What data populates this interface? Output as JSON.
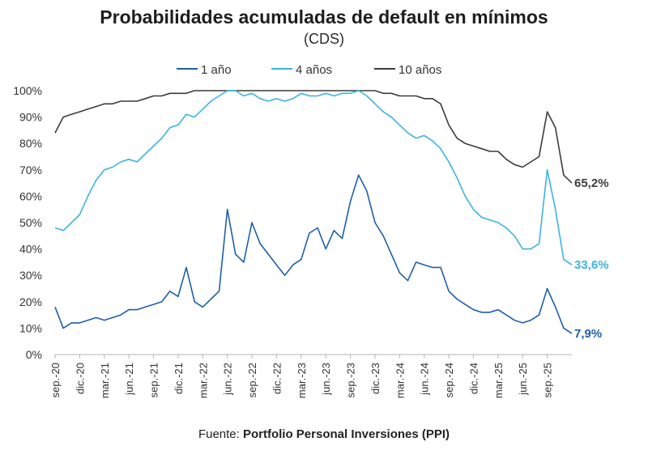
{
  "header": {
    "title": "Probabilidades acumuladas de default en mínimos",
    "subtitle": "(CDS)"
  },
  "footer": {
    "source_label": "Fuente:",
    "source_name": "Portfolio Personal Inversiones (PPI)"
  },
  "colors": {
    "series_1": "#1f5fa8",
    "series_2": "#3db3e0",
    "series_3": "#3c3c3c",
    "axis": "#b5b5b5",
    "text": "#333333"
  },
  "chart_data": {
    "type": "line",
    "title": "Probabilidades acumuladas de default en mínimos",
    "subtitle": "(CDS)",
    "legend_position": "top-center",
    "grid": false,
    "ylim": [
      0,
      100
    ],
    "y_ticks": [
      "0%",
      "10%",
      "20%",
      "30%",
      "40%",
      "50%",
      "60%",
      "70%",
      "80%",
      "90%",
      "100%"
    ],
    "x_ticks": [
      "sep.-20",
      "dic.-20",
      "mar.-21",
      "jun.-21",
      "sep.-21",
      "dic.-21",
      "mar.-22",
      "jun.-22",
      "sep.-22",
      "dic.-22",
      "mar.-23",
      "jun.-23",
      "sep.-23",
      "dic.-23",
      "mar.-24",
      "jun.-24",
      "sep.-24",
      "dic.-24",
      "mar.-25",
      "jun.-25",
      "sep.-25"
    ],
    "x": [
      "2020-09",
      "2020-10",
      "2020-11",
      "2020-12",
      "2021-01",
      "2021-02",
      "2021-03",
      "2021-04",
      "2021-05",
      "2021-06",
      "2021-07",
      "2021-08",
      "2021-09",
      "2021-10",
      "2021-11",
      "2021-12",
      "2022-01",
      "2022-02",
      "2022-03",
      "2022-04",
      "2022-05",
      "2022-06",
      "2022-07",
      "2022-08",
      "2022-09",
      "2022-10",
      "2022-11",
      "2022-12",
      "2023-01",
      "2023-02",
      "2023-03",
      "2023-04",
      "2023-05",
      "2023-06",
      "2023-07",
      "2023-08",
      "2023-09",
      "2023-10",
      "2023-11",
      "2023-12",
      "2024-01",
      "2024-02",
      "2024-03",
      "2024-04",
      "2024-05",
      "2024-06",
      "2024-07",
      "2024-08",
      "2024-09",
      "2024-10",
      "2024-11",
      "2024-12",
      "2025-01",
      "2025-02",
      "2025-03",
      "2025-04",
      "2025-05",
      "2025-06",
      "2025-07",
      "2025-08",
      "2025-09",
      "2025-10",
      "2025-11",
      "2025-12"
    ],
    "series": [
      {
        "name": "1 año",
        "end_label": "7,9%",
        "values": [
          18,
          10,
          12,
          12,
          13,
          14,
          13,
          14,
          15,
          17,
          17,
          18,
          19,
          20,
          24,
          22,
          33,
          20,
          18,
          21,
          24,
          55,
          38,
          35,
          50,
          42,
          38,
          34,
          30,
          34,
          36,
          46,
          48,
          40,
          47,
          44,
          58,
          68,
          62,
          50,
          45,
          38,
          31,
          28,
          35,
          34,
          33,
          33,
          24,
          21,
          19,
          17,
          16,
          16,
          17,
          15,
          13,
          12,
          13,
          15,
          25,
          18,
          10,
          8
        ]
      },
      {
        "name": "4 años",
        "end_label": "33,6%",
        "values": [
          48,
          47,
          50,
          53,
          60,
          66,
          70,
          71,
          73,
          74,
          73,
          76,
          79,
          82,
          86,
          87,
          91,
          90,
          93,
          96,
          98,
          100,
          100,
          98,
          99,
          97,
          96,
          97,
          96,
          97,
          99,
          98,
          98,
          99,
          98,
          99,
          99,
          100,
          98,
          95,
          92,
          90,
          87,
          84,
          82,
          83,
          81,
          78,
          73,
          67,
          60,
          55,
          52,
          51,
          50,
          48,
          45,
          40,
          40,
          42,
          70,
          55,
          36,
          34
        ]
      },
      {
        "name": "10 años",
        "end_label": "65,2%",
        "values": [
          84,
          90,
          91,
          92,
          93,
          94,
          95,
          95,
          96,
          96,
          96,
          97,
          98,
          98,
          99,
          99,
          99,
          100,
          100,
          100,
          100,
          100,
          100,
          100,
          100,
          100,
          100,
          100,
          100,
          100,
          100,
          100,
          100,
          100,
          100,
          100,
          100,
          100,
          100,
          100,
          99,
          99,
          98,
          98,
          98,
          97,
          97,
          95,
          87,
          82,
          80,
          79,
          78,
          77,
          77,
          74,
          72,
          71,
          73,
          75,
          92,
          86,
          68,
          65
        ]
      }
    ]
  }
}
